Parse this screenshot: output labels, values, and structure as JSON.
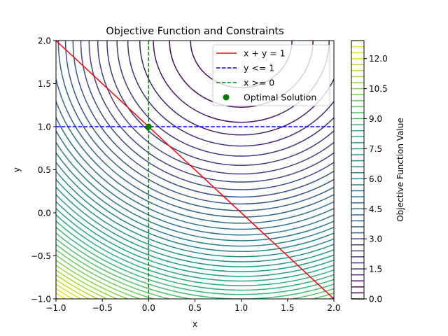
{
  "chart_data": {
    "type": "contour",
    "title": "Objective Function and Constraints",
    "xlabel": "x",
    "ylabel": "y",
    "xlim": [
      -1.0,
      2.0
    ],
    "ylim": [
      -1.0,
      2.0
    ],
    "x_ticks": [
      -1.0,
      -0.5,
      0.0,
      0.5,
      1.0,
      1.5,
      2.0
    ],
    "x_tick_labels": [
      "−1.0",
      "−0.5",
      "0.0",
      "0.5",
      "1.0",
      "1.5",
      "2.0"
    ],
    "y_ticks": [
      -1.0,
      -0.5,
      0.0,
      0.5,
      1.0,
      1.5,
      2.0
    ],
    "y_tick_labels": [
      "−1.0",
      "−0.5",
      "0.0",
      "0.5",
      "1.0",
      "1.5",
      "2.0"
    ],
    "objective": {
      "description": "(x-1)^2 + (y-2)^2",
      "center": [
        1.0,
        2.0
      ]
    },
    "contour_levels": {
      "start": 0.0,
      "stop": 12.9,
      "step": 0.3
    },
    "colormap": [
      "#440154",
      "#482878",
      "#3e4a89",
      "#31688e",
      "#26828e",
      "#1f9e89",
      "#35b779",
      "#6ece58",
      "#b5de2b",
      "#fde725"
    ],
    "constraint_lines": [
      {
        "label": "x + y = 1",
        "kind": "line",
        "points": [
          [
            -1.0,
            2.0
          ],
          [
            2.0,
            -1.0
          ]
        ],
        "color": "#ff0000",
        "dash": "solid"
      },
      {
        "label": "y <= 1",
        "kind": "hline",
        "value": 1.0,
        "color": "#0000ff",
        "dash": "dashed"
      },
      {
        "label": "x >= 0",
        "kind": "vline",
        "value": 0.0,
        "color": "#008000",
        "dash": "dashed"
      }
    ],
    "optimal_point": {
      "label": "Optimal Solution",
      "x": 0.0,
      "y": 1.0,
      "color": "#008000"
    },
    "legend": {
      "position": "top-right",
      "entries": [
        "x + y = 1",
        "y <= 1",
        "x >= 0",
        "Optimal Solution"
      ]
    },
    "colorbar": {
      "label": "Objective Function Value",
      "ticks": [
        0.0,
        1.5,
        3.0,
        4.5,
        6.0,
        7.5,
        9.0,
        10.5,
        12.0
      ],
      "tick_labels": [
        "0.0",
        "1.5",
        "3.0",
        "4.5",
        "6.0",
        "7.5",
        "9.0",
        "10.5",
        "12.0"
      ]
    }
  }
}
